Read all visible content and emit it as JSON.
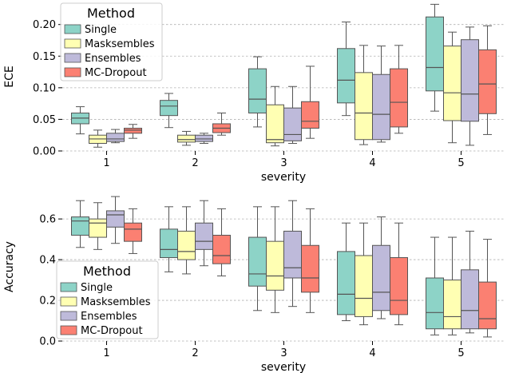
{
  "chart_data": [
    {
      "type": "box",
      "xlabel": "severity",
      "ylabel": "ECE",
      "categories": [
        "1",
        "2",
        "3",
        "4",
        "5"
      ],
      "ylim": [
        0,
        0.235
      ],
      "yticks": [
        0.0,
        0.05,
        0.1,
        0.15,
        0.2
      ],
      "ytick_labels": [
        "0.00",
        "0.05",
        "0.10",
        "0.15",
        "0.20"
      ],
      "grid": "horizontal dashed",
      "legend": {
        "title": "Method",
        "placement": "upper-left",
        "entries": [
          "Single",
          "Masksembles",
          "Ensembles",
          "MC-Dropout"
        ]
      },
      "series": [
        {
          "name": "Single",
          "color": "#8dd3c7",
          "boxes": [
            {
              "whislo": 0.027,
              "q1": 0.043,
              "med": 0.052,
              "q3": 0.06,
              "whishi": 0.07
            },
            {
              "whislo": 0.037,
              "q1": 0.056,
              "med": 0.071,
              "q3": 0.08,
              "whishi": 0.091
            },
            {
              "whislo": 0.038,
              "q1": 0.06,
              "med": 0.082,
              "q3": 0.13,
              "whishi": 0.149
            },
            {
              "whislo": 0.056,
              "q1": 0.076,
              "med": 0.112,
              "q3": 0.162,
              "whishi": 0.204
            },
            {
              "whislo": 0.063,
              "q1": 0.095,
              "med": 0.132,
              "q3": 0.212,
              "whishi": 0.232
            }
          ]
        },
        {
          "name": "Masksembles",
          "color": "#ffffb3",
          "boxes": [
            {
              "whislo": 0.006,
              "q1": 0.012,
              "med": 0.019,
              "q3": 0.025,
              "whishi": 0.033
            },
            {
              "whislo": 0.009,
              "q1": 0.014,
              "med": 0.018,
              "q3": 0.025,
              "whishi": 0.031
            },
            {
              "whislo": 0.008,
              "q1": 0.013,
              "med": 0.018,
              "q3": 0.073,
              "whishi": 0.102
            },
            {
              "whislo": 0.01,
              "q1": 0.018,
              "med": 0.06,
              "q3": 0.124,
              "whishi": 0.167
            },
            {
              "whislo": 0.013,
              "q1": 0.048,
              "med": 0.092,
              "q3": 0.166,
              "whishi": 0.188
            }
          ]
        },
        {
          "name": "Ensembles",
          "color": "#bebada",
          "boxes": [
            {
              "whislo": 0.013,
              "q1": 0.015,
              "med": 0.019,
              "q3": 0.028,
              "whishi": 0.034
            },
            {
              "whislo": 0.012,
              "q1": 0.015,
              "med": 0.019,
              "q3": 0.025,
              "whishi": 0.028
            },
            {
              "whislo": 0.012,
              "q1": 0.016,
              "med": 0.026,
              "q3": 0.068,
              "whishi": 0.102
            },
            {
              "whislo": 0.014,
              "q1": 0.018,
              "med": 0.058,
              "q3": 0.121,
              "whishi": 0.166
            },
            {
              "whislo": 0.009,
              "q1": 0.047,
              "med": 0.09,
              "q3": 0.176,
              "whishi": 0.196
            }
          ]
        },
        {
          "name": "MC-Dropout",
          "color": "#fb8072",
          "boxes": [
            {
              "whislo": 0.02,
              "q1": 0.028,
              "med": 0.033,
              "q3": 0.036,
              "whishi": 0.042
            },
            {
              "whislo": 0.025,
              "q1": 0.029,
              "med": 0.036,
              "q3": 0.043,
              "whishi": 0.06
            },
            {
              "whislo": 0.02,
              "q1": 0.036,
              "med": 0.047,
              "q3": 0.078,
              "whishi": 0.134
            },
            {
              "whislo": 0.028,
              "q1": 0.038,
              "med": 0.077,
              "q3": 0.13,
              "whishi": 0.167
            },
            {
              "whislo": 0.026,
              "q1": 0.059,
              "med": 0.106,
              "q3": 0.16,
              "whishi": 0.198
            }
          ]
        }
      ]
    },
    {
      "type": "box",
      "xlabel": "severity",
      "ylabel": "Accuracy",
      "categories": [
        "1",
        "2",
        "3",
        "4",
        "5"
      ],
      "ylim": [
        0,
        0.73
      ],
      "yticks": [
        0.0,
        0.2,
        0.4,
        0.6
      ],
      "ytick_labels": [
        "0.0",
        "0.2",
        "0.4",
        "0.6"
      ],
      "grid": "horizontal dashed",
      "legend": {
        "title": "Method",
        "placement": "lower-left",
        "entries": [
          "Single",
          "Masksembles",
          "Ensembles",
          "MC-Dropout"
        ]
      },
      "series": [
        {
          "name": "Single",
          "color": "#8dd3c7",
          "boxes": [
            {
              "whislo": 0.46,
              "q1": 0.52,
              "med": 0.59,
              "q3": 0.61,
              "whishi": 0.69
            },
            {
              "whislo": 0.34,
              "q1": 0.41,
              "med": 0.45,
              "q3": 0.55,
              "whishi": 0.66
            },
            {
              "whislo": 0.15,
              "q1": 0.27,
              "med": 0.33,
              "q3": 0.51,
              "whishi": 0.66
            },
            {
              "whislo": 0.1,
              "q1": 0.13,
              "med": 0.23,
              "q3": 0.44,
              "whishi": 0.58
            },
            {
              "whislo": 0.03,
              "q1": 0.06,
              "med": 0.14,
              "q3": 0.31,
              "whishi": 0.51
            }
          ]
        },
        {
          "name": "Masksembles",
          "color": "#ffffb3",
          "boxes": [
            {
              "whislo": 0.45,
              "q1": 0.51,
              "med": 0.58,
              "q3": 0.6,
              "whishi": 0.68
            },
            {
              "whislo": 0.33,
              "q1": 0.4,
              "med": 0.44,
              "q3": 0.54,
              "whishi": 0.66
            },
            {
              "whislo": 0.14,
              "q1": 0.25,
              "med": 0.32,
              "q3": 0.49,
              "whishi": 0.66
            },
            {
              "whislo": 0.08,
              "q1": 0.12,
              "med": 0.21,
              "q3": 0.42,
              "whishi": 0.58
            },
            {
              "whislo": 0.03,
              "q1": 0.06,
              "med": 0.12,
              "q3": 0.3,
              "whishi": 0.51
            }
          ]
        },
        {
          "name": "Ensembles",
          "color": "#bebada",
          "boxes": [
            {
              "whislo": 0.48,
              "q1": 0.56,
              "med": 0.62,
              "q3": 0.64,
              "whishi": 0.71
            },
            {
              "whislo": 0.37,
              "q1": 0.45,
              "med": 0.49,
              "q3": 0.58,
              "whishi": 0.69
            },
            {
              "whislo": 0.17,
              "q1": 0.31,
              "med": 0.36,
              "q3": 0.54,
              "whishi": 0.69
            },
            {
              "whislo": 0.11,
              "q1": 0.15,
              "med": 0.24,
              "q3": 0.47,
              "whishi": 0.61
            },
            {
              "whislo": 0.04,
              "q1": 0.06,
              "med": 0.15,
              "q3": 0.35,
              "whishi": 0.54
            }
          ]
        },
        {
          "name": "MC-Dropout",
          "color": "#fb8072",
          "boxes": [
            {
              "whislo": 0.43,
              "q1": 0.49,
              "med": 0.55,
              "q3": 0.58,
              "whishi": 0.65
            },
            {
              "whislo": 0.32,
              "q1": 0.38,
              "med": 0.42,
              "q3": 0.52,
              "whishi": 0.65
            },
            {
              "whislo": 0.14,
              "q1": 0.24,
              "med": 0.31,
              "q3": 0.47,
              "whishi": 0.65
            },
            {
              "whislo": 0.08,
              "q1": 0.13,
              "med": 0.2,
              "q3": 0.41,
              "whishi": 0.58
            },
            {
              "whislo": 0.02,
              "q1": 0.06,
              "med": 0.11,
              "q3": 0.29,
              "whishi": 0.5
            }
          ]
        }
      ]
    }
  ]
}
